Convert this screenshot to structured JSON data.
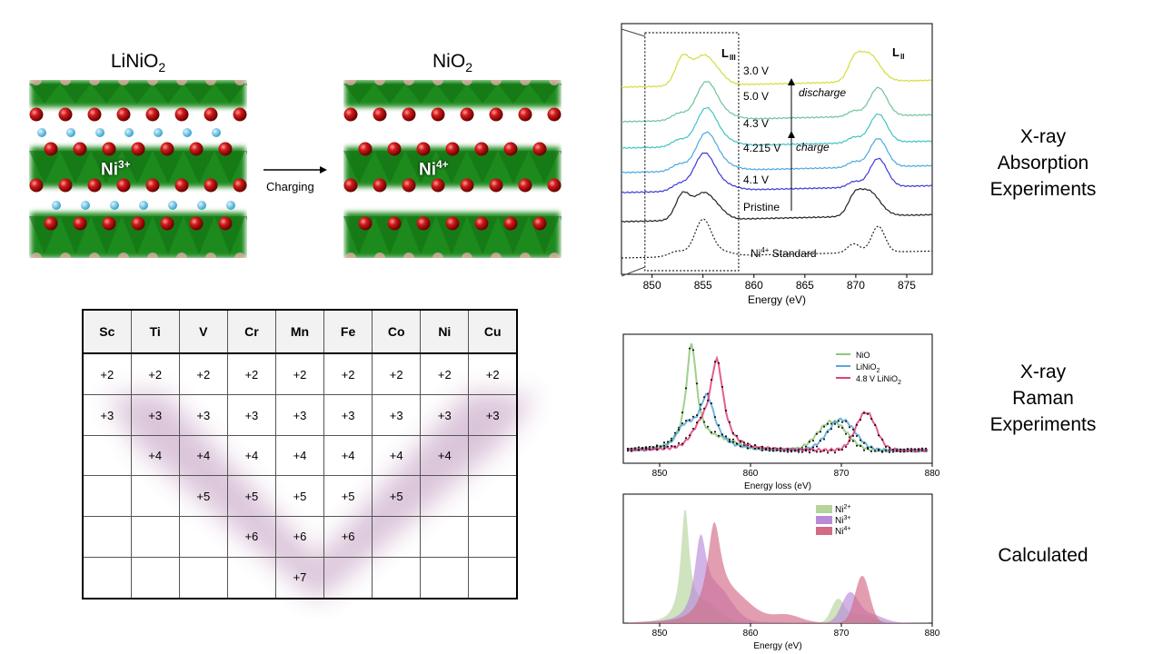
{
  "left": {
    "lini_label": "LiNiO",
    "lini_sub": "2",
    "nio2_label": "NiO",
    "nio2_sub": "2",
    "ni3_base": "Ni",
    "ni3_sup": "3+",
    "ni4_base": "Ni",
    "ni4_sup": "4+",
    "arrow_label": "Charging"
  },
  "table": {
    "headers": [
      "Sc",
      "Ti",
      "V",
      "Cr",
      "Mn",
      "Fe",
      "Co",
      "Ni",
      "Cu"
    ],
    "rows": [
      [
        "+2",
        "+2",
        "+2",
        "+2",
        "+2",
        "+2",
        "+2",
        "+2",
        "+2"
      ],
      [
        "+3",
        "+3",
        "+3",
        "+3",
        "+3",
        "+3",
        "+3",
        "+3",
        "+3"
      ],
      [
        "",
        "+4",
        "+4",
        "+4",
        "+4",
        "+4",
        "+4",
        "+4",
        ""
      ],
      [
        "",
        "",
        "+5",
        "+5",
        "+5",
        "+5",
        "+5",
        "",
        ""
      ],
      [
        "",
        "",
        "",
        "+6",
        "+6",
        "+6",
        "",
        "",
        ""
      ],
      [
        "",
        "",
        "",
        "",
        "+7",
        "",
        "",
        "",
        ""
      ]
    ],
    "highlight_color": "#8e4a8a"
  },
  "side_labels": {
    "xas": "X-ray Absorption Experiments",
    "xas_lines": [
      "X-ray",
      "Absorption",
      "Experiments"
    ],
    "raman_lines": [
      "X-ray",
      "Raman",
      "Experiments"
    ],
    "calc": "Calculated"
  },
  "chart_data": [
    {
      "type": "line",
      "xlabel": "Energy (eV)",
      "ylabel": "",
      "xlim": [
        847,
        877.5
      ],
      "xticks": [
        850,
        855,
        860,
        865,
        870,
        875
      ],
      "edge_labels": {
        "L3": "L",
        "L3_sub": "III",
        "L2": "L",
        "L2_sub": "II"
      },
      "annotations": [
        "discharge",
        "charge"
      ],
      "series": [
        {
          "name": "3.0 V",
          "color": "#d4dd3a"
        },
        {
          "name": "5.0 V",
          "color": "#6dc49a"
        },
        {
          "name": "4.3 V",
          "color": "#3fc4c4"
        },
        {
          "name": "4.215 V",
          "color": "#4aa8e0"
        },
        {
          "name": "4.1 V",
          "color": "#3a3ad6"
        },
        {
          "name": "Pristine",
          "color": "#222222"
        },
        {
          "name": "Ni4+ Standard",
          "label_base": "Ni",
          "label_sup": "4+",
          "label_rest": " Standard",
          "color": "#222222",
          "dashed": true
        }
      ]
    },
    {
      "type": "scatter",
      "xlabel": "Energy loss (eV)",
      "xlim": [
        846,
        880
      ],
      "xticks": [
        850,
        860,
        870,
        880
      ],
      "series": [
        {
          "name": "NiO",
          "color": "#8dc875"
        },
        {
          "name": "LiNiO2",
          "label_base": "LiNiO",
          "label_sub": "2",
          "color": "#58a8dc"
        },
        {
          "name": "4.8 V LiNiO2",
          "label_base": "4.8 V LiNiO",
          "label_sub": "2",
          "color": "#e0407a"
        }
      ]
    },
    {
      "type": "area",
      "xlabel": "Energy (eV)",
      "xlim": [
        846,
        880
      ],
      "xticks": [
        850,
        860,
        870,
        880
      ],
      "series": [
        {
          "name": "Ni2+",
          "label_base": "Ni",
          "label_sup": "2+",
          "color": "#b5d49c"
        },
        {
          "name": "Ni3+",
          "label_base": "Ni",
          "label_sup": "3+",
          "color": "#b88ad8"
        },
        {
          "name": "Ni4+",
          "label_base": "Ni",
          "label_sup": "4+",
          "color": "#d36a86"
        }
      ]
    }
  ]
}
